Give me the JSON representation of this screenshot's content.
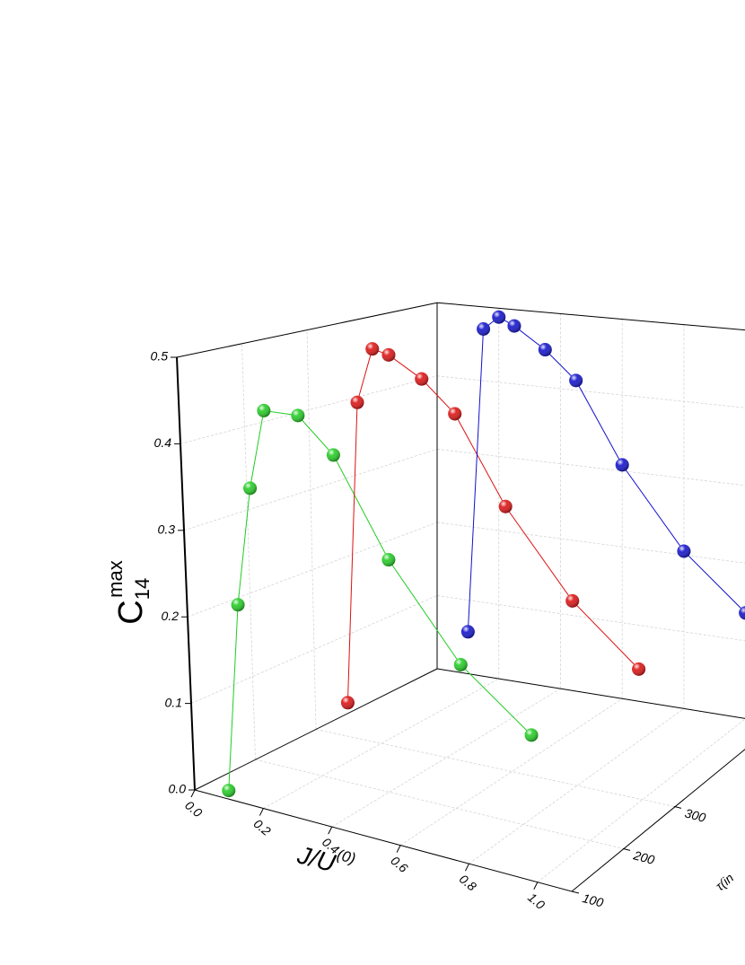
{
  "chart_data": {
    "type": "line3d",
    "x_label": {
      "base": "J/U",
      "sup": "(0)"
    },
    "y_label": "τ(in",
    "z_label": {
      "base": "C",
      "sub": "14",
      "sup": "max"
    },
    "xlim": [
      0,
      1.1
    ],
    "ylim": [
      100,
      500
    ],
    "zlim": [
      0,
      0.5
    ],
    "xticks": [
      {
        "value": 0,
        "label": "0.0"
      },
      {
        "value": 0.2,
        "label": "0.2"
      },
      {
        "value": 0.4,
        "label": "0.4"
      },
      {
        "value": 0.6,
        "label": "0.6"
      },
      {
        "value": 0.8,
        "label": "0.8"
      },
      {
        "value": 1,
        "label": "1.0"
      }
    ],
    "yticks": [
      100,
      200,
      300
    ],
    "zticks": [
      {
        "value": 0,
        "label": "0.0"
      },
      {
        "value": 0.1,
        "label": "0.1"
      },
      {
        "value": 0.2,
        "label": "0.2"
      },
      {
        "value": 0.3,
        "label": "0.3"
      },
      {
        "value": 0.4,
        "label": "0.4"
      },
      {
        "value": 0.5,
        "label": "0.5"
      }
    ],
    "grid": true,
    "x": [
      0.1,
      0.15,
      0.2,
      0.25,
      0.35,
      0.45,
      0.6,
      0.8,
      1.0
    ],
    "series": [
      {
        "color": "#22cc22",
        "y": 100,
        "values": [
          0.01,
          0.23,
          0.37,
          0.465,
          0.47,
          0.435,
          0.33,
          0.23,
          0.17
        ]
      },
      {
        "color": "#dd1111",
        "y": 300,
        "values": [
          0.042,
          0.42,
          0.49,
          0.486,
          0.463,
          0.427,
          0.324,
          0.224,
          0.157
        ]
      },
      {
        "color": "#1111cc",
        "y": 500,
        "values": [
          0.057,
          0.47,
          0.488,
          0.478,
          0.45,
          0.413,
          0.308,
          0.205,
          0.136
        ]
      }
    ]
  }
}
